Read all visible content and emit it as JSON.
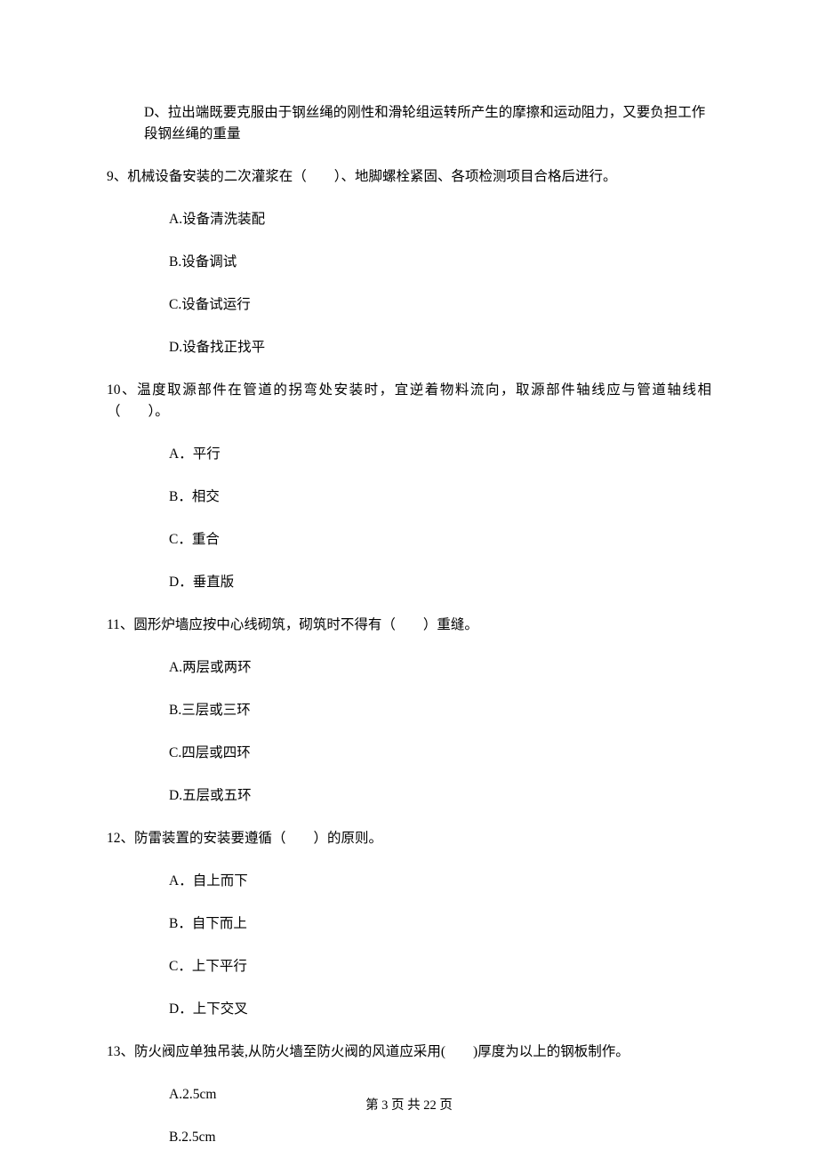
{
  "fragment": {
    "optD": "D、拉出端既要克服由于钢丝绳的刚性和滑轮组运转所产生的摩擦和运动阻力，又要负担工作段钢丝绳的重量"
  },
  "q9": {
    "stem": "9、机械设备安装的二次灌浆在（　　）、地脚螺栓紧固、各项检测项目合格后进行。",
    "A": "A.设备清洗装配",
    "B": "B.设备调试",
    "C": "C.设备试运行",
    "D": "D.设备找正找平"
  },
  "q10": {
    "stem": "10、温度取源部件在管道的拐弯处安装时，宜逆着物料流向，取源部件轴线应与管道轴线相（　　）。",
    "A": "A．平行",
    "B": "B．相交",
    "C": "C．重合",
    "D": "D．垂直版"
  },
  "q11": {
    "stem": "11、圆形炉墙应按中心线砌筑，砌筑时不得有（　　）重缝。",
    "A": "A.两层或两环",
    "B": "B.三层或三环",
    "C": "C.四层或四环",
    "D": "D.五层或五环"
  },
  "q12": {
    "stem": "12、防雷装置的安装要遵循（　　）的原则。",
    "A": "A．自上而下",
    "B": "B．自下而上",
    "C": "C．上下平行",
    "D": "D．上下交叉"
  },
  "q13": {
    "stem": "13、防火阀应单独吊装,从防火墙至防火阀的风道应采用(　　)厚度为以上的钢板制作。",
    "A": "A.2.5cm",
    "B": "B.2.5cm"
  },
  "footer": "第 3 页 共 22 页"
}
